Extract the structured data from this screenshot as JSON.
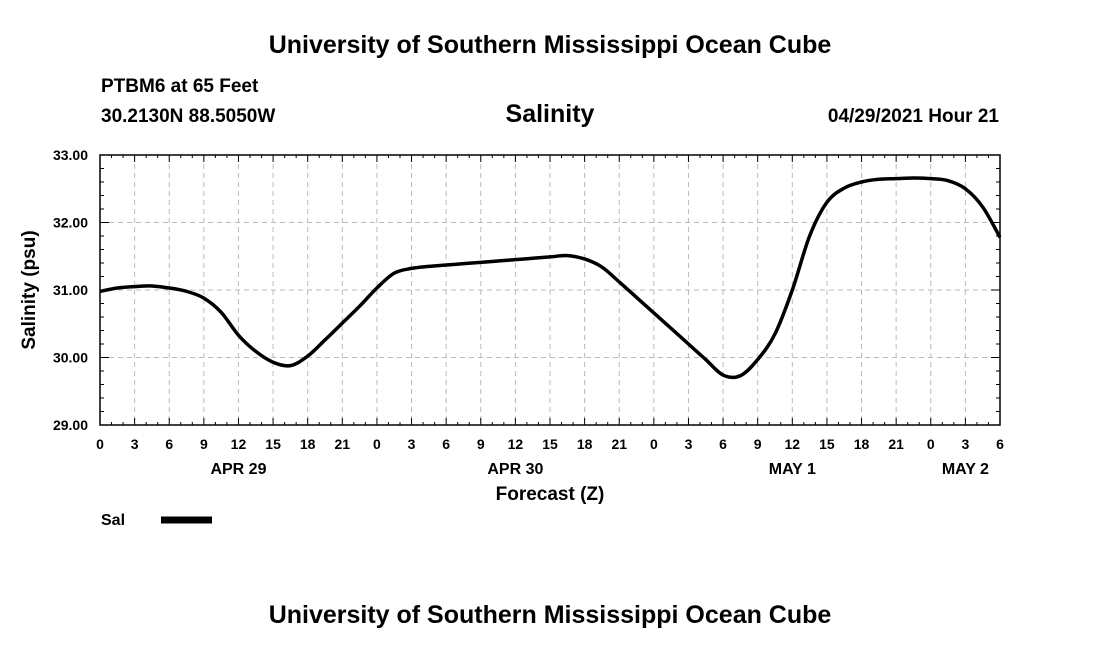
{
  "header": {
    "title_top": "University of Southern Mississippi Ocean Cube",
    "station": "PTBM6 at 65 Feet",
    "coords": "30.2130N  88.5050W",
    "variable": "Salinity",
    "datetime": "04/29/2021 Hour 21"
  },
  "footer": {
    "title_bottom": "University of Southern Mississippi Ocean Cube"
  },
  "chart_data": {
    "type": "line",
    "title": "Salinity",
    "xlabel": "Forecast (Z)",
    "ylabel": "Salinity (psu)",
    "ylim": [
      29,
      33
    ],
    "xlim": [
      0,
      78
    ],
    "grid": true,
    "x_unit": "hours from APR 29 00Z",
    "y_ticks": [
      "29.00",
      "30.00",
      "31.00",
      "32.00",
      "33.00"
    ],
    "x_tick_values": [
      0,
      3,
      6,
      9,
      12,
      15,
      18,
      21,
      24,
      27,
      30,
      33,
      36,
      39,
      42,
      45,
      48,
      51,
      54,
      57,
      60,
      63,
      66,
      69,
      72,
      75,
      78
    ],
    "x_tick_labels": [
      "0",
      "3",
      "6",
      "9",
      "12",
      "15",
      "18",
      "21",
      "0",
      "3",
      "6",
      "9",
      "12",
      "15",
      "18",
      "21",
      "0",
      "3",
      "6",
      "9",
      "12",
      "15",
      "18",
      "21",
      "0",
      "3",
      "6"
    ],
    "date_labels": [
      {
        "label": "APR 29",
        "hour": 12
      },
      {
        "label": "APR 30",
        "hour": 36
      },
      {
        "label": "MAY 1",
        "hour": 60
      },
      {
        "label": "MAY 2",
        "hour": 75
      }
    ],
    "legend": [
      {
        "name": "Sal",
        "style": "thick-solid"
      }
    ],
    "series": [
      {
        "name": "Sal",
        "x": [
          0,
          1.5,
          3,
          4.5,
          6,
          7.5,
          9,
          10.5,
          12,
          13.5,
          15,
          16.5,
          18,
          19.5,
          21,
          22.5,
          24,
          25.5,
          27,
          28.5,
          30,
          31.5,
          33,
          34.5,
          36,
          37.5,
          39,
          40.5,
          42,
          43.5,
          45,
          46.5,
          48,
          49.5,
          51,
          52.5,
          54,
          55.5,
          57,
          58.5,
          60,
          61.5,
          63,
          64.5,
          66,
          67.5,
          69,
          70.5,
          72,
          73.5,
          75,
          76.5,
          78
        ],
        "values": [
          30.98,
          31.03,
          31.05,
          31.06,
          31.03,
          30.98,
          30.88,
          30.67,
          30.33,
          30.09,
          29.93,
          29.88,
          30.02,
          30.26,
          30.51,
          30.76,
          31.03,
          31.25,
          31.32,
          31.35,
          31.37,
          31.39,
          31.41,
          31.43,
          31.45,
          31.47,
          31.49,
          31.51,
          31.46,
          31.34,
          31.12,
          30.89,
          30.66,
          30.43,
          30.2,
          29.97,
          29.74,
          29.73,
          29.97,
          30.35,
          31.0,
          31.8,
          32.3,
          32.51,
          32.6,
          32.64,
          32.65,
          32.66,
          32.65,
          32.62,
          32.5,
          32.23,
          31.78
        ]
      }
    ]
  }
}
